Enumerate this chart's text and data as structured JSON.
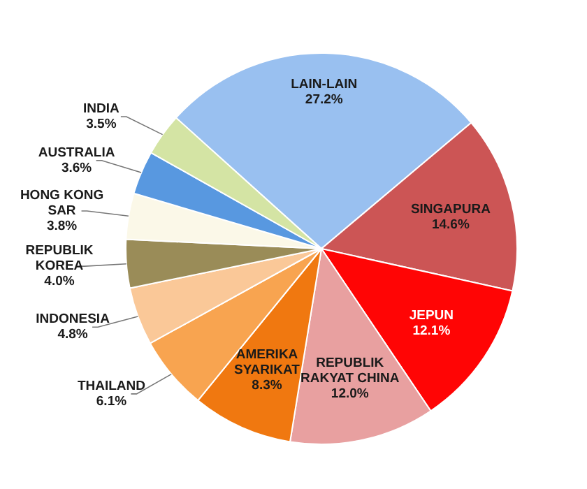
{
  "chart_data": {
    "type": "pie",
    "categories": [
      "LAIN-LAIN",
      "SINGAPURA",
      "JEPUN",
      "REPUBLIK RAKYAT CHINA",
      "AMERIKA SYARIKAT",
      "THAILAND",
      "INDONESIA",
      "REPUBLIK KOREA",
      "HONG KONG SAR",
      "AUSTRALIA",
      "INDIA"
    ],
    "values": [
      27.2,
      14.6,
      12.1,
      12.0,
      8.3,
      6.1,
      4.8,
      4.0,
      3.8,
      3.6,
      3.5
    ],
    "value_labels": [
      "27.2%",
      "14.6%",
      "12.1%",
      "12.0%",
      "8.3%",
      "6.1%",
      "4.8%",
      "4.0%",
      "3.8%",
      "3.6%",
      "3.5%"
    ],
    "colors": [
      "#99c0f0",
      "#cc5555",
      "#ff0505",
      "#e8a0a0",
      "#f07810",
      "#f8a450",
      "#fac898",
      "#9a8c58",
      "#fbf8e8",
      "#5898e0",
      "#d4e4a4"
    ]
  }
}
